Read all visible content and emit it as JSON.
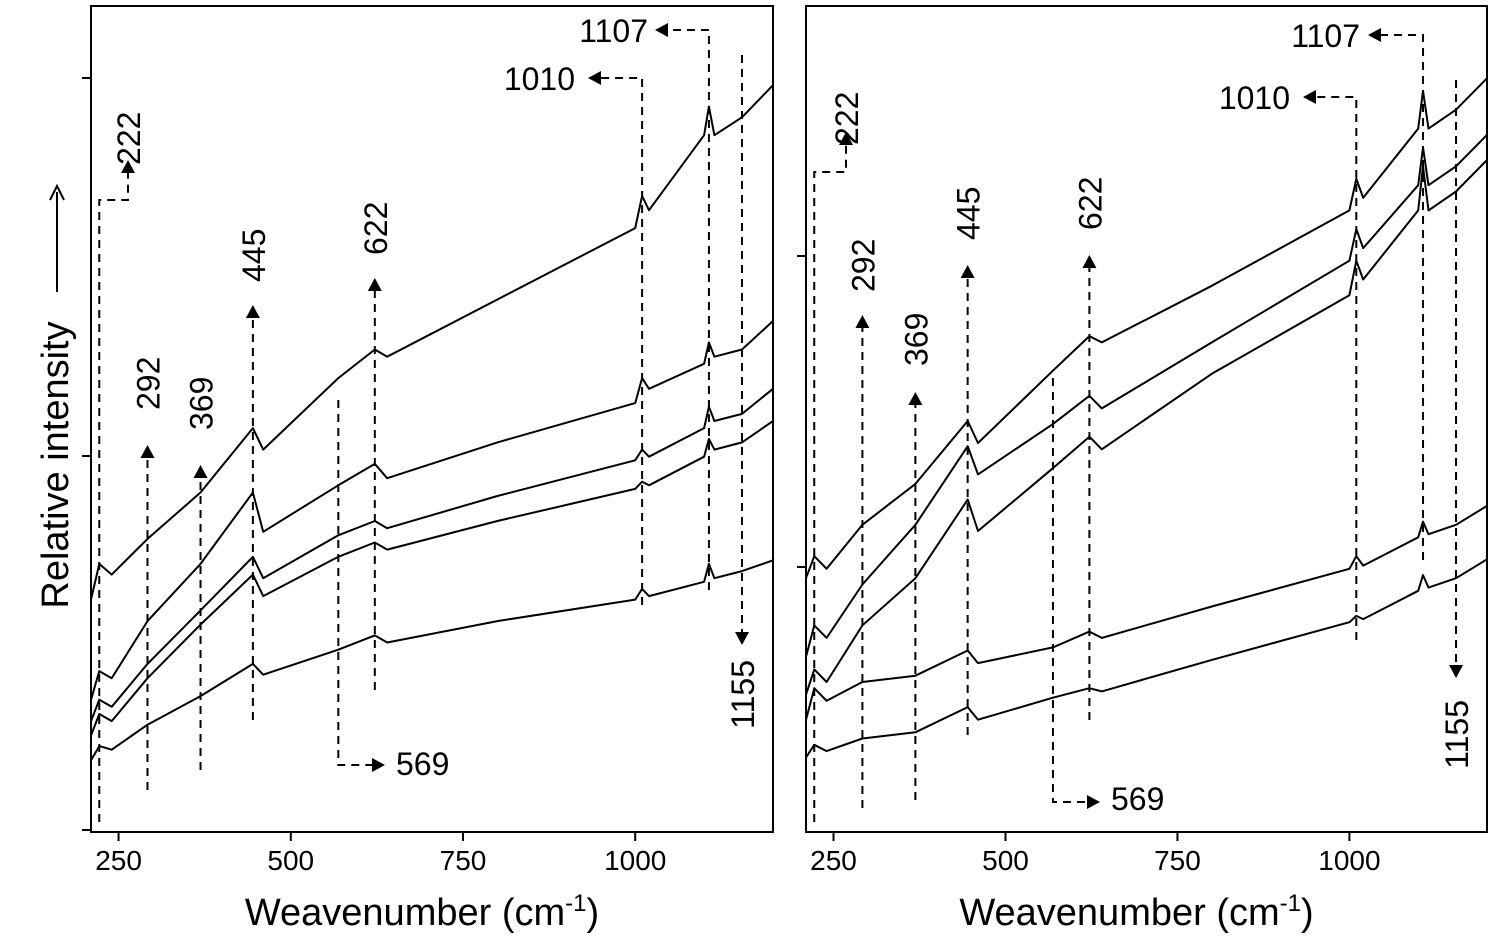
{
  "figure": {
    "y_axis_label": "Relative intensity",
    "x_axis_label": "Weavenumber (cm",
    "x_axis_label_sup": "-1",
    "x_axis_label_close": ")"
  },
  "chart_data": [
    {
      "type": "line",
      "panel": "left",
      "xlabel": "Weavenumber (cm-1)",
      "ylabel": "Relative intensity",
      "xlim": [
        210,
        1200
      ],
      "x_ticks": [
        250,
        500,
        750,
        1000
      ],
      "y_tick_labels_shown": false,
      "peak_markers": [
        {
          "label": "222",
          "x": 222
        },
        {
          "label": "292",
          "x": 292
        },
        {
          "label": "369",
          "x": 369
        },
        {
          "label": "445",
          "x": 445
        },
        {
          "label": "569",
          "x": 569
        },
        {
          "label": "622",
          "x": 622
        },
        {
          "label": "1010",
          "x": 1010
        },
        {
          "label": "1107",
          "x": 1107
        },
        {
          "label": "1155",
          "x": 1155
        }
      ],
      "series": [
        {
          "x": [
            210,
            222,
            240,
            292,
            369,
            445,
            460,
            569,
            622,
            640,
            800,
            1000,
            1010,
            1020,
            1100,
            1107,
            1115,
            1155,
            1200
          ],
          "y": [
            0.4,
            0.5,
            0.47,
            0.57,
            0.7,
            0.88,
            0.82,
            1.02,
            1.1,
            1.08,
            1.24,
            1.44,
            1.53,
            1.49,
            1.7,
            1.78,
            1.7,
            1.75,
            1.84
          ]
        },
        {
          "x": [
            210,
            222,
            240,
            292,
            369,
            445,
            460,
            569,
            622,
            640,
            800,
            1000,
            1010,
            1020,
            1100,
            1107,
            1115,
            1155,
            1200
          ],
          "y": [
            0.12,
            0.2,
            0.18,
            0.34,
            0.5,
            0.7,
            0.59,
            0.72,
            0.78,
            0.74,
            0.84,
            0.95,
            1.02,
            0.99,
            1.06,
            1.12,
            1.08,
            1.1,
            1.18
          ]
        },
        {
          "x": [
            210,
            222,
            240,
            292,
            369,
            445,
            460,
            569,
            622,
            640,
            800,
            1000,
            1010,
            1020,
            1100,
            1107,
            1115,
            1155,
            1200
          ],
          "y": [
            0.06,
            0.12,
            0.1,
            0.22,
            0.37,
            0.52,
            0.46,
            0.58,
            0.62,
            0.6,
            0.69,
            0.79,
            0.82,
            0.8,
            0.88,
            0.94,
            0.9,
            0.92,
            0.99
          ]
        },
        {
          "x": [
            210,
            222,
            240,
            292,
            369,
            445,
            460,
            569,
            622,
            640,
            800,
            1000,
            1010,
            1020,
            1100,
            1107,
            1115,
            1155,
            1200
          ],
          "y": [
            0.02,
            0.08,
            0.06,
            0.18,
            0.33,
            0.47,
            0.41,
            0.52,
            0.56,
            0.54,
            0.62,
            0.71,
            0.73,
            0.72,
            0.8,
            0.85,
            0.82,
            0.84,
            0.9
          ]
        },
        {
          "x": [
            210,
            222,
            240,
            292,
            369,
            445,
            460,
            569,
            622,
            640,
            800,
            1000,
            1010,
            1020,
            1100,
            1107,
            1115,
            1155,
            1200
          ],
          "y": [
            -0.05,
            -0.01,
            -0.02,
            0.05,
            0.13,
            0.22,
            0.19,
            0.26,
            0.3,
            0.28,
            0.34,
            0.4,
            0.43,
            0.41,
            0.45,
            0.5,
            0.46,
            0.48,
            0.51
          ]
        }
      ]
    },
    {
      "type": "line",
      "panel": "right",
      "xlabel": "Weavenumber (cm-1)",
      "ylabel": "",
      "xlim": [
        210,
        1200
      ],
      "x_ticks": [
        250,
        500,
        750,
        1000
      ],
      "y_tick_labels_shown": false,
      "peak_markers": [
        {
          "label": "222",
          "x": 222
        },
        {
          "label": "292",
          "x": 292
        },
        {
          "label": "369",
          "x": 369
        },
        {
          "label": "445",
          "x": 445
        },
        {
          "label": "569",
          "x": 569
        },
        {
          "label": "622",
          "x": 622
        },
        {
          "label": "1010",
          "x": 1010
        },
        {
          "label": "1107",
          "x": 1107
        },
        {
          "label": "1155",
          "x": 1155
        }
      ],
      "series": [
        {
          "x": [
            210,
            222,
            240,
            292,
            369,
            445,
            460,
            569,
            622,
            640,
            800,
            1000,
            1010,
            1020,
            1100,
            1107,
            1115,
            1155,
            1200
          ],
          "y": [
            0.55,
            0.62,
            0.58,
            0.72,
            0.85,
            1.05,
            0.98,
            1.21,
            1.32,
            1.3,
            1.48,
            1.72,
            1.82,
            1.76,
            1.98,
            2.1,
            1.98,
            2.04,
            2.14
          ]
        },
        {
          "x": [
            210,
            222,
            240,
            292,
            369,
            445,
            460,
            569,
            622,
            640,
            800,
            1000,
            1010,
            1020,
            1100,
            1107,
            1115,
            1155,
            1200
          ],
          "y": [
            0.3,
            0.4,
            0.36,
            0.53,
            0.72,
            0.97,
            0.88,
            1.04,
            1.13,
            1.09,
            1.3,
            1.56,
            1.66,
            1.6,
            1.8,
            1.92,
            1.8,
            1.86,
            1.96
          ]
        },
        {
          "x": [
            210,
            222,
            240,
            292,
            369,
            445,
            460,
            569,
            622,
            640,
            800,
            1000,
            1010,
            1020,
            1100,
            1107,
            1115,
            1155,
            1200
          ],
          "y": [
            0.18,
            0.26,
            0.22,
            0.4,
            0.55,
            0.8,
            0.7,
            0.9,
            1.0,
            0.96,
            1.2,
            1.45,
            1.56,
            1.5,
            1.72,
            1.86,
            1.72,
            1.78,
            1.88
          ]
        },
        {
          "x": [
            210,
            222,
            240,
            292,
            369,
            445,
            460,
            569,
            622,
            640,
            800,
            1000,
            1010,
            1020,
            1100,
            1107,
            1115,
            1155,
            1200
          ],
          "y": [
            0.1,
            0.2,
            0.16,
            0.22,
            0.24,
            0.32,
            0.28,
            0.33,
            0.38,
            0.36,
            0.46,
            0.58,
            0.62,
            0.59,
            0.68,
            0.73,
            0.69,
            0.72,
            0.78
          ]
        },
        {
          "x": [
            210,
            222,
            240,
            292,
            369,
            445,
            460,
            569,
            622,
            640,
            800,
            1000,
            1010,
            1020,
            1100,
            1107,
            1115,
            1155,
            1200
          ],
          "y": [
            -0.02,
            0.02,
            0.0,
            0.04,
            0.06,
            0.14,
            0.1,
            0.17,
            0.2,
            0.19,
            0.29,
            0.41,
            0.43,
            0.42,
            0.51,
            0.56,
            0.52,
            0.55,
            0.61
          ]
        }
      ]
    }
  ]
}
